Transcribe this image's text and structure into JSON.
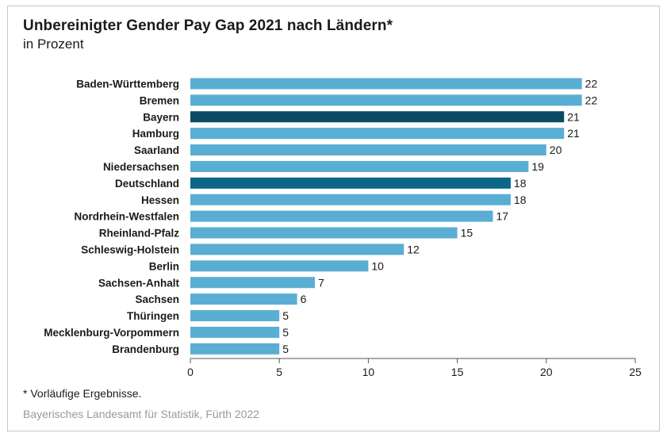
{
  "chart_data": {
    "type": "bar",
    "orientation": "horizontal",
    "title": "Unbereinigter Gender Pay Gap 2021 nach Ländern*",
    "subtitle": "in Prozent",
    "categories": [
      "Baden-Württemberg",
      "Bremen",
      "Bayern",
      "Hamburg",
      "Saarland",
      "Niedersachsen",
      "Deutschland",
      "Hessen",
      "Nordrhein-Westfalen",
      "Rheinland-Pfalz",
      "Schleswig-Holstein",
      "Berlin",
      "Sachsen-Anhalt",
      "Sachsen",
      "Thüringen",
      "Mecklenburg-Vorpommern",
      "Brandenburg"
    ],
    "values": [
      22,
      22,
      21,
      21,
      20,
      19,
      18,
      18,
      17,
      15,
      12,
      10,
      7,
      6,
      5,
      5,
      5
    ],
    "highlight": [
      "Bayern",
      "Deutschland"
    ],
    "xlim": [
      0,
      25
    ],
    "xticks": [
      0,
      5,
      10,
      15,
      20,
      25
    ],
    "xlabel": "",
    "ylabel": "",
    "grid": false,
    "colors": {
      "default": "#5aaed3",
      "Bayern": "#0c4a63",
      "Deutschland": "#0b6689"
    }
  },
  "footnote": "*  Vorläufige Ergebnisse.",
  "source": "Bayerisches Landesamt für Statistik, Fürth 2022"
}
